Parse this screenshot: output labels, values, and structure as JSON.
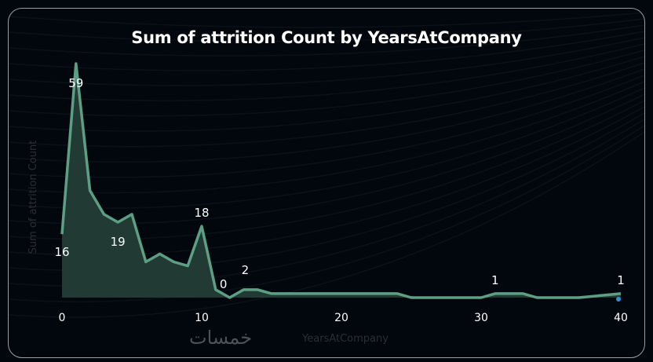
{
  "chart_data": {
    "type": "area",
    "title": "Sum of attrition Count by YearsAtCompany",
    "xlabel": "YearsAtCompany",
    "ylabel": "Sum of attrition Count",
    "xlim": [
      0,
      40
    ],
    "ylim": [
      0,
      60
    ],
    "x_ticks": [
      0,
      10,
      20,
      30,
      40
    ],
    "grid": false,
    "points": [
      [
        0,
        16
      ],
      [
        1,
        59
      ],
      [
        2,
        27
      ],
      [
        3,
        21
      ],
      [
        4,
        19
      ],
      [
        5,
        21
      ],
      [
        6,
        9
      ],
      [
        7,
        11
      ],
      [
        8,
        9
      ],
      [
        9,
        8
      ],
      [
        10,
        18
      ],
      [
        11,
        2
      ],
      [
        12,
        0
      ],
      [
        13,
        2
      ],
      [
        14,
        2
      ],
      [
        15,
        1
      ],
      [
        16,
        1
      ],
      [
        17,
        1
      ],
      [
        18,
        1
      ],
      [
        19,
        1
      ],
      [
        20,
        1
      ],
      [
        21,
        1
      ],
      [
        22,
        1
      ],
      [
        23,
        1
      ],
      [
        24,
        1
      ],
      [
        25,
        0
      ],
      [
        26,
        0
      ],
      [
        27,
        0
      ],
      [
        28,
        0
      ],
      [
        29,
        0
      ],
      [
        30,
        0
      ],
      [
        31,
        1
      ],
      [
        32,
        1
      ],
      [
        33,
        1
      ],
      [
        34,
        0
      ],
      [
        35,
        0
      ],
      [
        36,
        0
      ],
      [
        37,
        0
      ],
      [
        40,
        1
      ]
    ],
    "data_labels": [
      {
        "x": 0,
        "text": "16"
      },
      {
        "x": 1,
        "text": "59"
      },
      {
        "x": 4,
        "text": "19"
      },
      {
        "x": 10,
        "text": "18"
      },
      {
        "x": 12,
        "text": "0"
      },
      {
        "x": 13,
        "text": "2"
      },
      {
        "x": 31,
        "text": "1"
      },
      {
        "x": 40,
        "text": "1"
      }
    ],
    "line_color": "#5c9f84",
    "fill_color": "#27433b"
  },
  "watermark": "خمسات"
}
